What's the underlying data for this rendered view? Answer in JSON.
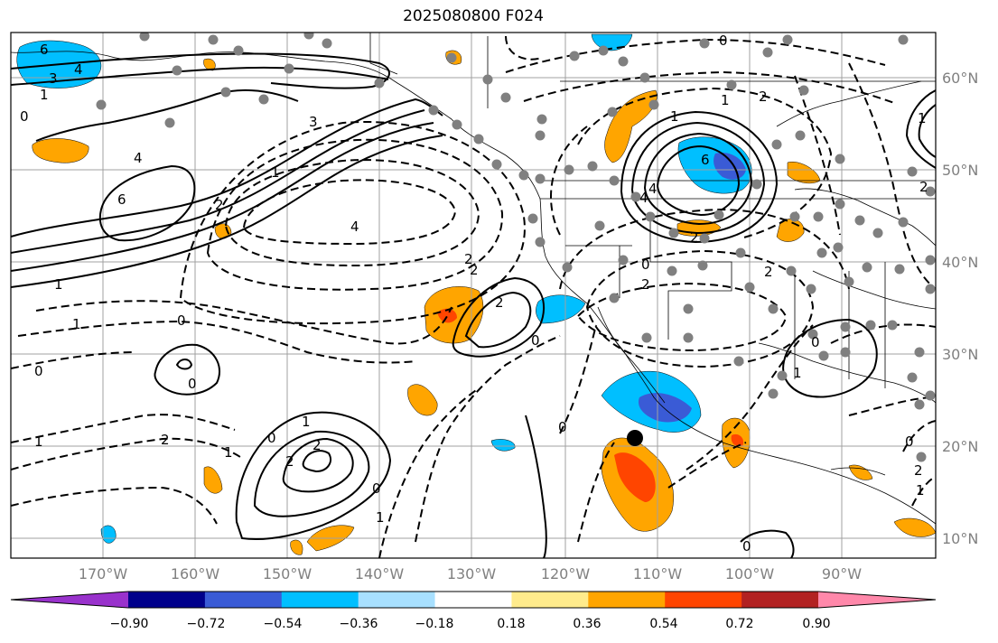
{
  "title": "2025080800 F024",
  "latitude_labels": [
    {
      "label": "60°N",
      "lat": 60
    },
    {
      "label": "50°N",
      "lat": 50
    },
    {
      "label": "40°N",
      "lat": 40
    },
    {
      "label": "30°N",
      "lat": 30
    },
    {
      "label": "20°N",
      "lat": 20
    },
    {
      "label": "10°N",
      "lat": 10
    }
  ],
  "longitude_labels": [
    {
      "label": "170°W",
      "lon": -170
    },
    {
      "label": "160°W",
      "lon": -160
    },
    {
      "label": "150°W",
      "lon": -150
    },
    {
      "label": "140°W",
      "lon": -140
    },
    {
      "label": "130°W",
      "lon": -130
    },
    {
      "label": "120°W",
      "lon": -120
    },
    {
      "label": "110°W",
      "lon": -110
    },
    {
      "label": "100°W",
      "lon": -100
    },
    {
      "label": "90°W",
      "lon": -90
    }
  ],
  "colorbar": {
    "colors": [
      "#9932cc",
      "#00008b",
      "#3a5bd6",
      "#00bfff",
      "#a8e0ff",
      "#ffffff",
      "#ffeb8c",
      "#ffa500",
      "#ff4500",
      "#b22222",
      "#ff88aa"
    ],
    "tick_labels": [
      "−0.90",
      "−0.72",
      "−0.54",
      "−0.36",
      "−0.18",
      "0.18",
      "0.36",
      "0.54",
      "0.72",
      "0.90"
    ]
  },
  "contour_labels": [
    "6",
    "3",
    "4",
    "1",
    "0",
    "3",
    "4",
    "6",
    "1",
    "1",
    "2",
    "4",
    "2",
    "1",
    "0",
    "2",
    "0",
    "1",
    "0",
    "0",
    "1",
    "2",
    "2",
    "2",
    "0",
    "0",
    "1",
    "1",
    "2",
    "2",
    "0",
    "1",
    "2",
    "4",
    "1",
    "6",
    "4",
    "2",
    "0",
    "2",
    "1",
    "2",
    "1",
    "0",
    "0",
    "2",
    "0",
    "1",
    "0"
  ],
  "marker": {
    "lon": -112,
    "lat": 21
  },
  "colors": {
    "positive_fill": "#ffa500",
    "positive_strong": "#ff4500",
    "negative_fill": "#00bfff",
    "negative_strong": "#3a5bd6",
    "station_dot": "#808080",
    "grid": "#a0a0a0"
  }
}
